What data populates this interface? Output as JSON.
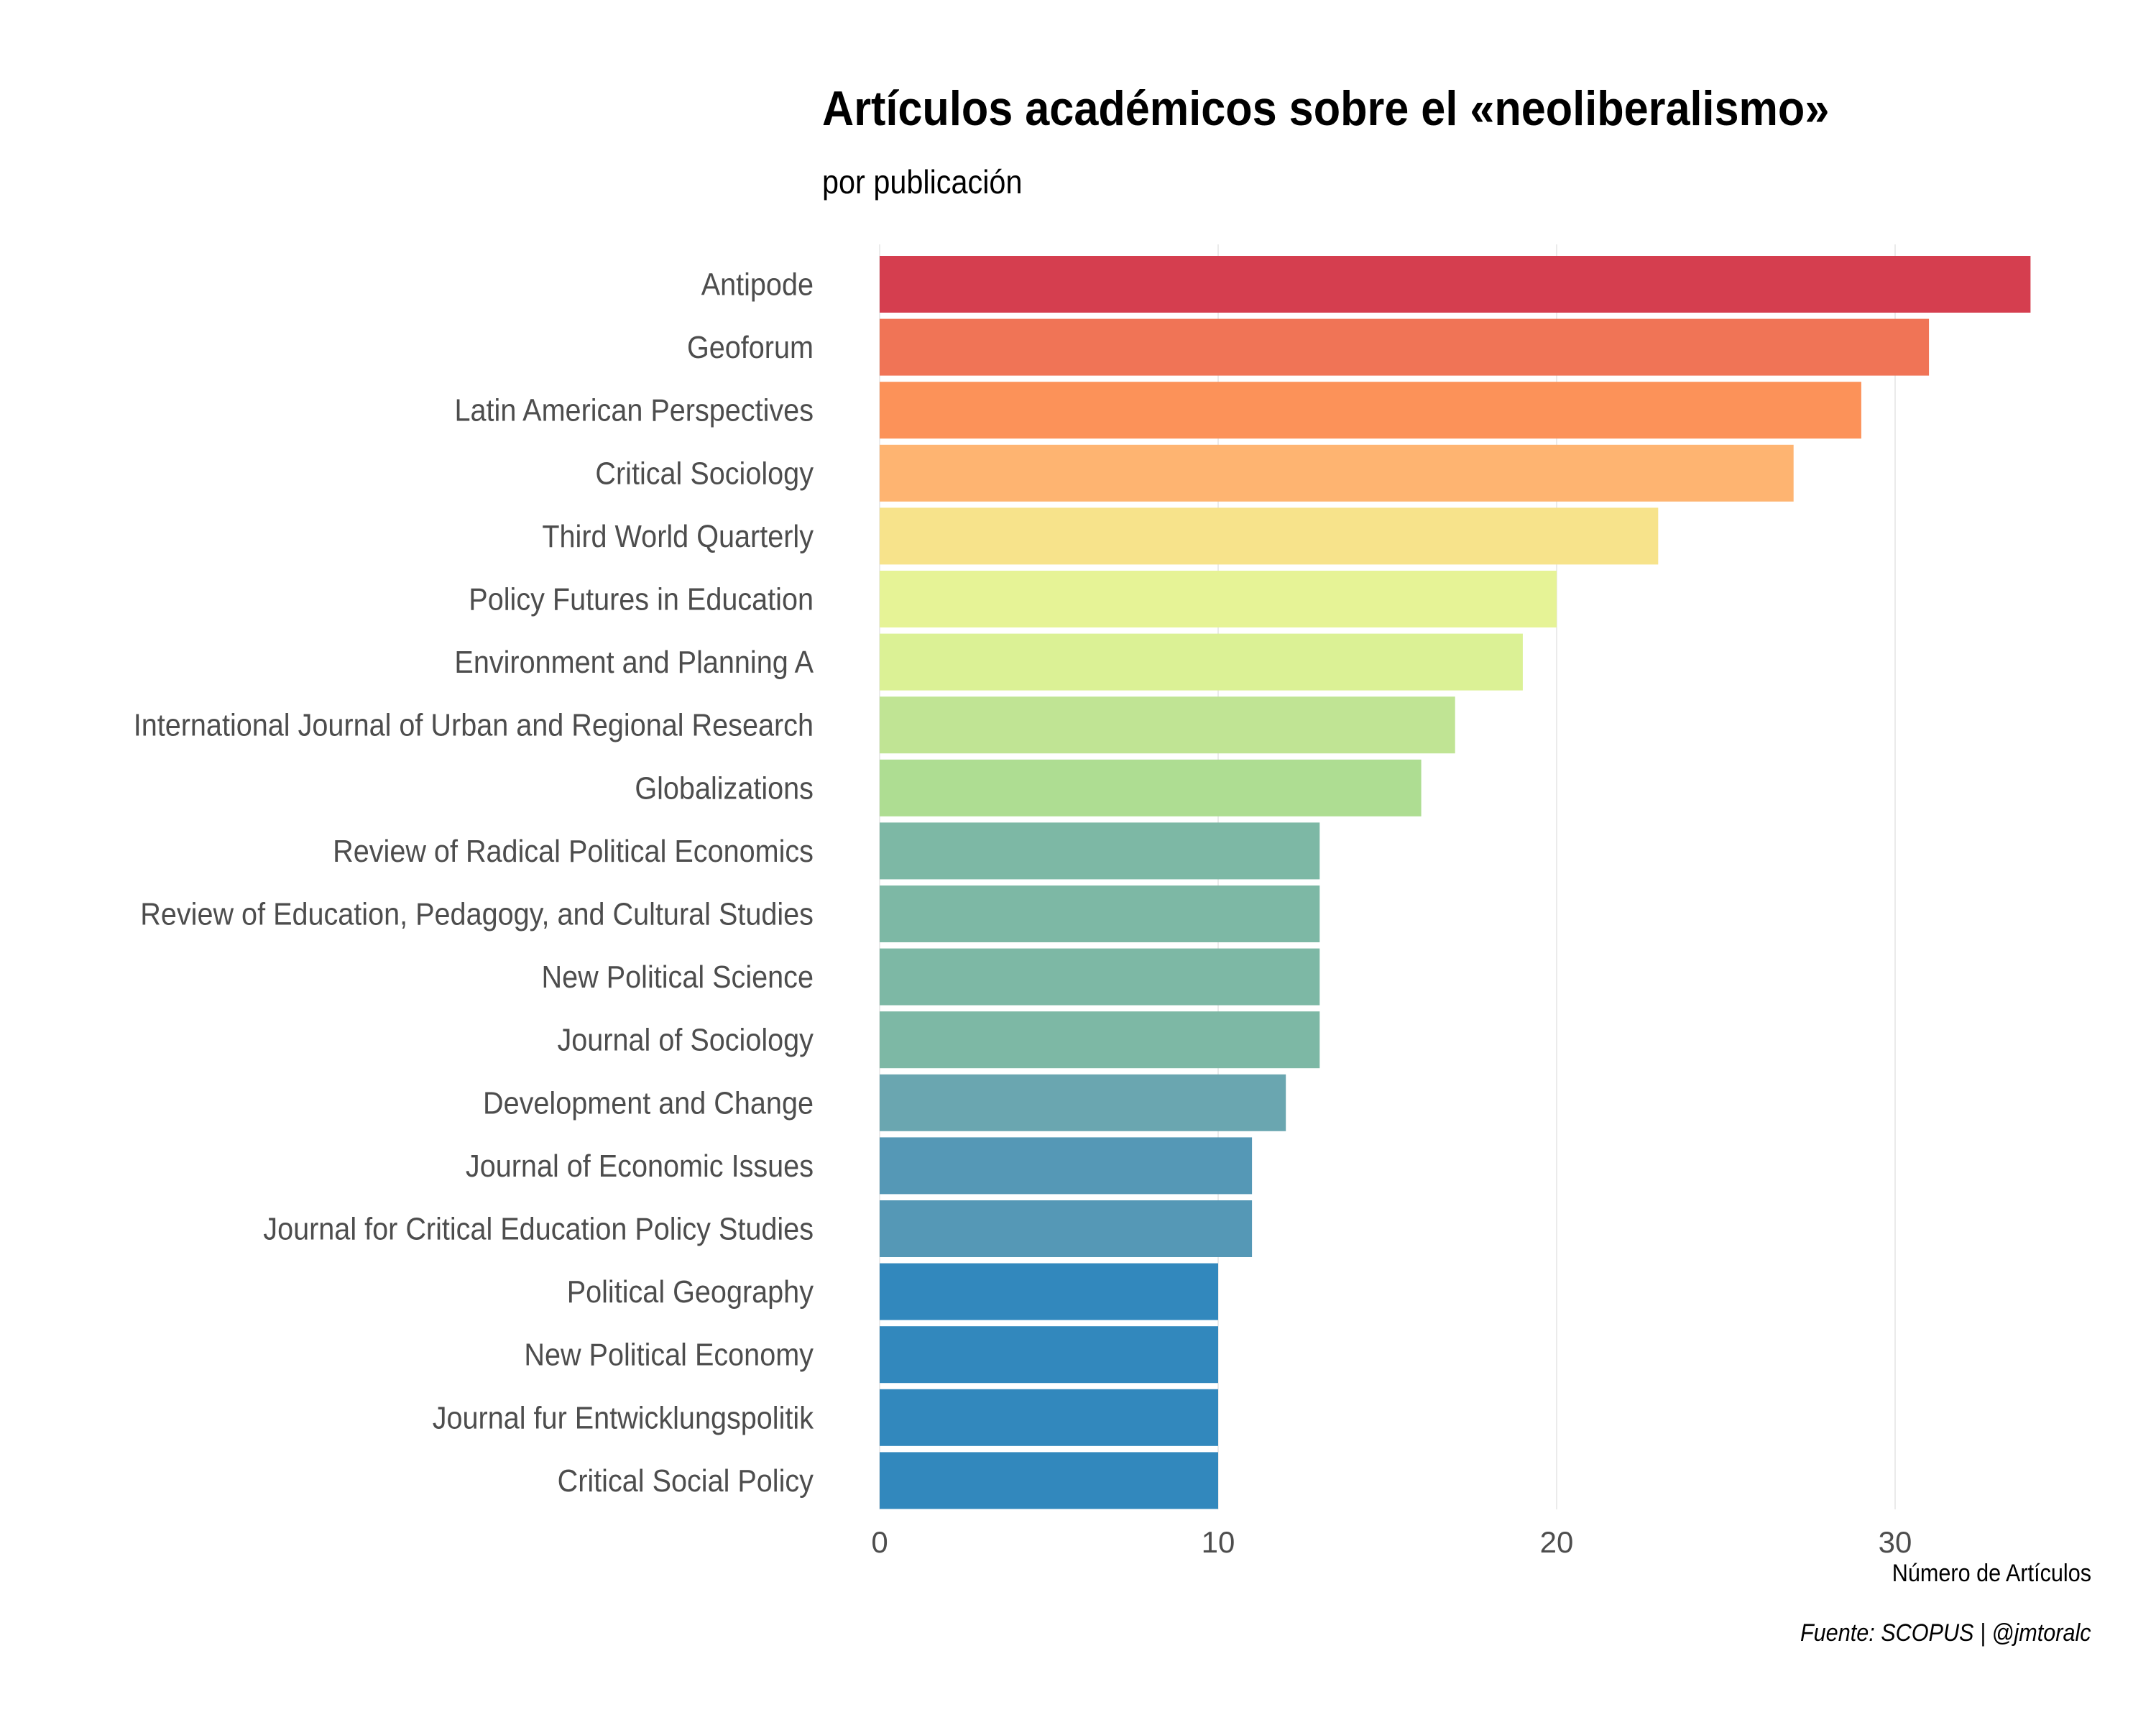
{
  "chart_data": {
    "type": "bar",
    "orientation": "horizontal",
    "title": "Artículos académicos sobre el «neoliberalismo»",
    "subtitle": "por publicación",
    "xlabel": "Número de Artículos",
    "ylabel": "",
    "caption": "Fuente: SCOPUS | @jmtoralc",
    "xlim": [
      0,
      35
    ],
    "xticks": [
      0,
      10,
      20,
      30
    ],
    "grid": "vertical",
    "categories": [
      "Antipode",
      "Geoforum",
      "Latin American Perspectives",
      "Critical Sociology",
      "Third World Quarterly",
      "Policy Futures in Education",
      "Environment and Planning A",
      "International Journal of Urban and Regional Research",
      "Globalizations",
      "Review of Radical Political Economics",
      "Review of Education, Pedagogy, and Cultural Studies",
      "New Political Science",
      "Journal of Sociology",
      "Development and Change",
      "Journal of Economic Issues",
      "Journal for Critical Education Policy Studies",
      "Political Geography",
      "New Political Economy",
      "Journal fur Entwicklungspolitik",
      "Critical Social Policy"
    ],
    "values": [
      34,
      31,
      29,
      27,
      23,
      20,
      19,
      17,
      16,
      13,
      13,
      13,
      13,
      12,
      11,
      11,
      10,
      10,
      10,
      10
    ],
    "colors": [
      "#d53e4f",
      "#f07456",
      "#fc9259",
      "#feb471",
      "#f7e38b",
      "#e6f396",
      "#dbf195",
      "#c0e494",
      "#aedd92",
      "#7db8a5",
      "#7db8a5",
      "#7db8a5",
      "#7db8a5",
      "#6aa6b0",
      "#5598b6",
      "#5598b6",
      "#3288bd",
      "#3288bd",
      "#3288bd",
      "#3288bd"
    ]
  }
}
